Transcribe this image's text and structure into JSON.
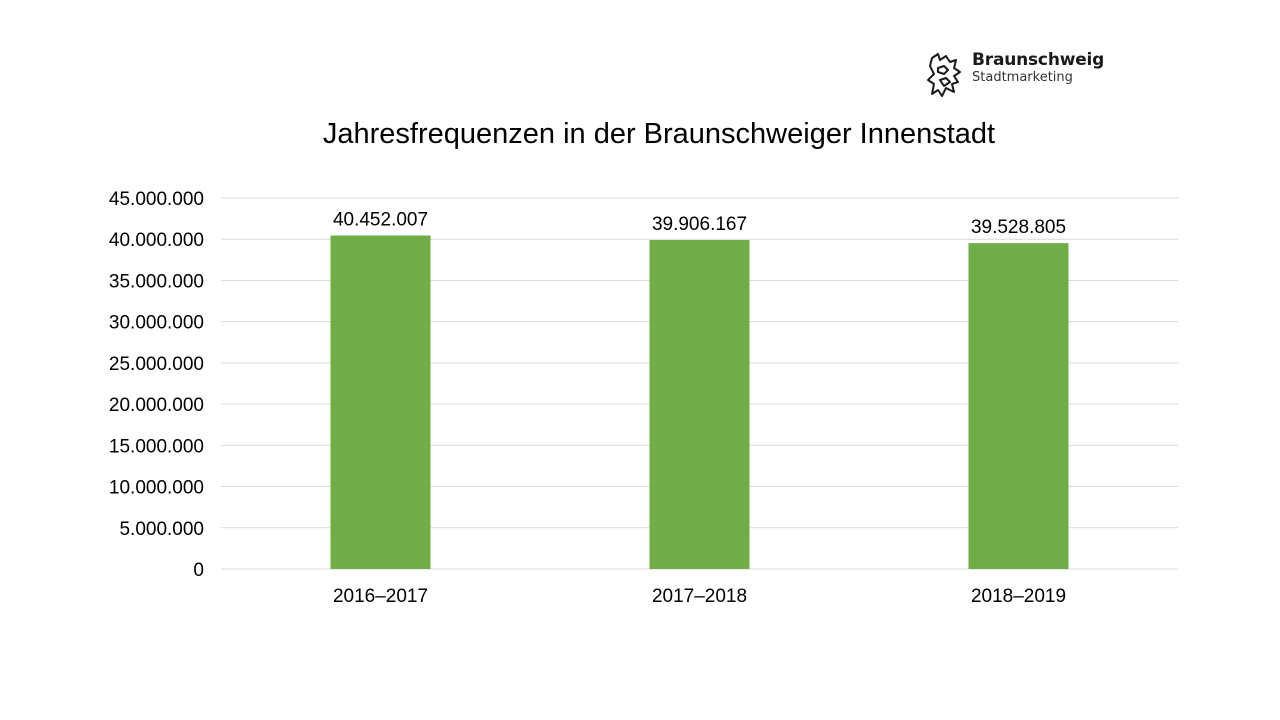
{
  "logo": {
    "name": "Braunschweig",
    "subtitle": "Stadtmarketing",
    "icon": "lion-crest-icon"
  },
  "chart_data": {
    "type": "bar",
    "title": "Jahresfrequenzen in der Braunschweiger Innenstadt",
    "xlabel": "",
    "ylabel": "",
    "categories": [
      "2016–2017",
      "2017–2018",
      "2018–2019"
    ],
    "values": [
      40452007,
      39906167,
      39528805
    ],
    "data_labels": [
      "40.452.007",
      "39.906.167",
      "39.528.805"
    ],
    "ylim": [
      0,
      45000000
    ],
    "yticks": [
      0,
      5000000,
      10000000,
      15000000,
      20000000,
      25000000,
      30000000,
      35000000,
      40000000,
      45000000
    ],
    "ytick_labels": [
      "0",
      "5.000.000",
      "10.000.000",
      "15.000.000",
      "20.000.000",
      "25.000.000",
      "30.000.000",
      "35.000.000",
      "40.000.000",
      "45.000.000"
    ],
    "bar_color": "#70ad47",
    "gridline_color": "#d9d9d9",
    "grid": true,
    "legend": "none"
  }
}
